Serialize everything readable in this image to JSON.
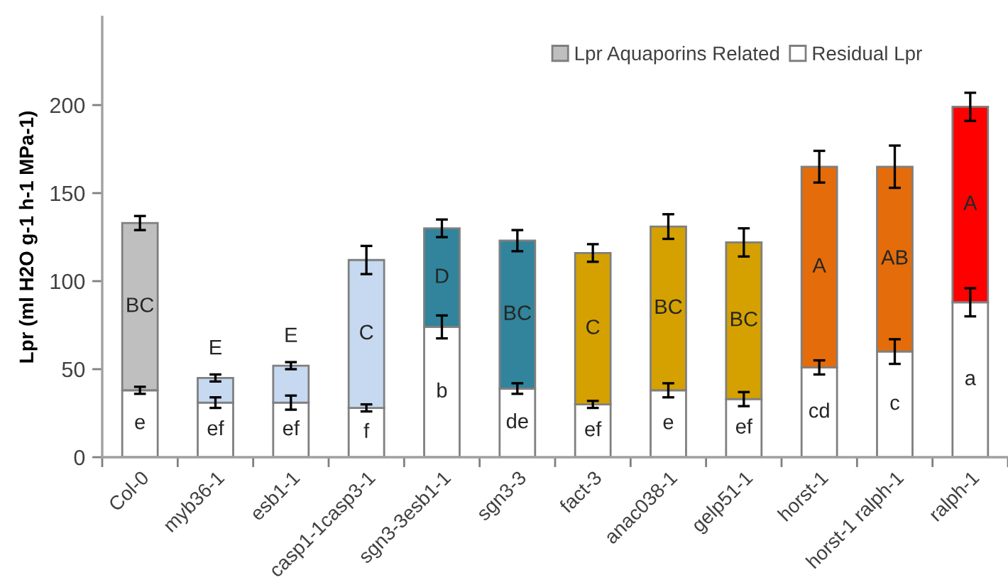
{
  "chart_data": {
    "type": "bar",
    "stacked": true,
    "ylabel": "Lpr (ml H2O g-1 h-1 MPa-1)",
    "categories": [
      "Col-0",
      "myb36-1",
      "esb1-1",
      "casp1-1casp3-1",
      "sgn3-3esb1-1",
      "sgn3-3",
      "fact-3",
      "anac038-1",
      "gelp51-1",
      "horst-1",
      "horst-1 ralph-1",
      "ralph-1"
    ],
    "series": [
      {
        "name": "Residual Lpr",
        "color": "#ffffff",
        "values": [
          38,
          31,
          31,
          28,
          74,
          39,
          30,
          38,
          33,
          51,
          60,
          88
        ],
        "errors": [
          2,
          3,
          4,
          2,
          6.5,
          3,
          2,
          4,
          4,
          4,
          7,
          8
        ],
        "value_labels": [
          "e",
          "ef",
          "ef",
          "f",
          "b",
          "de",
          "ef",
          "e",
          "ef",
          "cd",
          "c",
          "a"
        ]
      },
      {
        "name": "Lpr Aquaporins Related",
        "color": "#bfbfbf",
        "colors": [
          "#bfbfbf",
          "#c6d9f1",
          "#c6d9f1",
          "#c6d9f1",
          "#31849b",
          "#31849b",
          "#d4a100",
          "#d4a100",
          "#d4a100",
          "#e46c0a",
          "#e46c0a",
          "#ff0000"
        ],
        "values": [
          95,
          14,
          21,
          84,
          56,
          84,
          86,
          93,
          89,
          114,
          105,
          111
        ],
        "errors": [
          4,
          2,
          2,
          8,
          5,
          6,
          5,
          7,
          8,
          9,
          12,
          8
        ],
        "value_labels": [
          "BC",
          "E",
          "E",
          "C",
          "D",
          "BC",
          "C",
          "BC",
          "BC",
          "A",
          "AB",
          "A"
        ]
      }
    ],
    "ylim": [
      0,
      250
    ],
    "yticks": [
      0,
      50,
      100,
      150,
      200
    ],
    "grid": false,
    "legend": "top right"
  }
}
